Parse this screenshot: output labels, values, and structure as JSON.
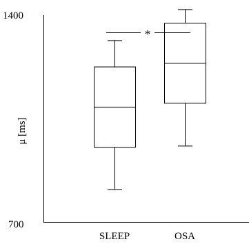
{
  "chart_data": {
    "type": "boxplot",
    "ylabel": "μ [ms]",
    "ylim": [
      700,
      1400
    ],
    "y_ticks": [
      "1400",
      "700"
    ],
    "categories": [
      "SLEEP",
      "OSA"
    ],
    "boxes": [
      {
        "label": "SLEEP",
        "whisker_low": 811,
        "q1": 954,
        "median": 1090,
        "q3": 1226,
        "whisker_high": 1315
      },
      {
        "label": "OSA",
        "whisker_low": 958,
        "q1": 1103,
        "median": 1238,
        "q3": 1374,
        "whisker_high": 1420
      }
    ],
    "significance": {
      "between": [
        "SLEEP",
        "OSA"
      ],
      "symbol": "*"
    },
    "grid": false
  }
}
